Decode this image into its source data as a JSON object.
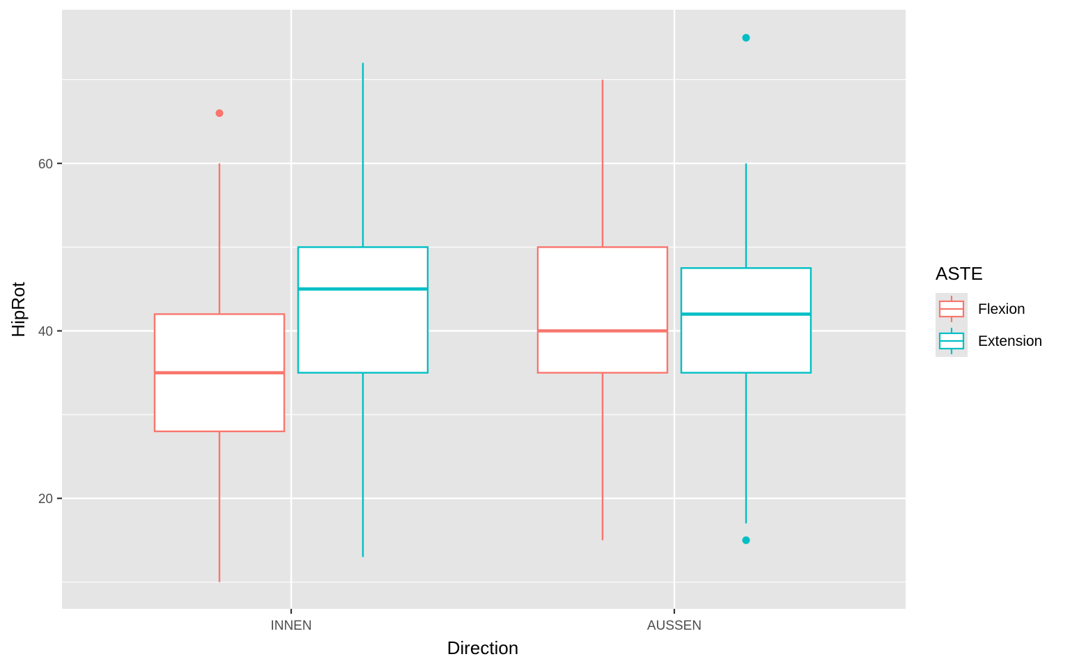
{
  "chart_data": {
    "type": "boxplot",
    "xlabel": "Direction",
    "ylabel": "HipRot",
    "categories": [
      "INNEN",
      "AUSSEN"
    ],
    "ylim": [
      7,
      78.5
    ],
    "y_ticks": [
      20,
      40,
      60
    ],
    "y_minor_ticks": [
      10,
      30,
      50,
      70
    ],
    "grid": true,
    "legend": {
      "title": "ASTE",
      "position": "right",
      "entries": [
        "Flexion",
        "Extension"
      ]
    },
    "series": [
      {
        "name": "Flexion",
        "color": "#F8766D",
        "boxes": [
          {
            "category": "INNEN",
            "whisker_low": 10,
            "q1": 28,
            "median": 35,
            "q3": 42,
            "whisker_high": 60,
            "outliers": [
              66
            ]
          },
          {
            "category": "AUSSEN",
            "whisker_low": 15,
            "q1": 35,
            "median": 40,
            "q3": 50,
            "whisker_high": 70,
            "outliers": []
          }
        ]
      },
      {
        "name": "Extension",
        "color": "#00BFC4",
        "boxes": [
          {
            "category": "INNEN",
            "whisker_low": 13,
            "q1": 35,
            "median": 45,
            "q3": 50,
            "whisker_high": 72,
            "outliers": []
          },
          {
            "category": "AUSSEN",
            "whisker_low": 17,
            "q1": 35,
            "median": 42,
            "q3": 47.5,
            "whisker_high": 60,
            "outliers": [
              75,
              15
            ]
          }
        ]
      }
    ]
  }
}
